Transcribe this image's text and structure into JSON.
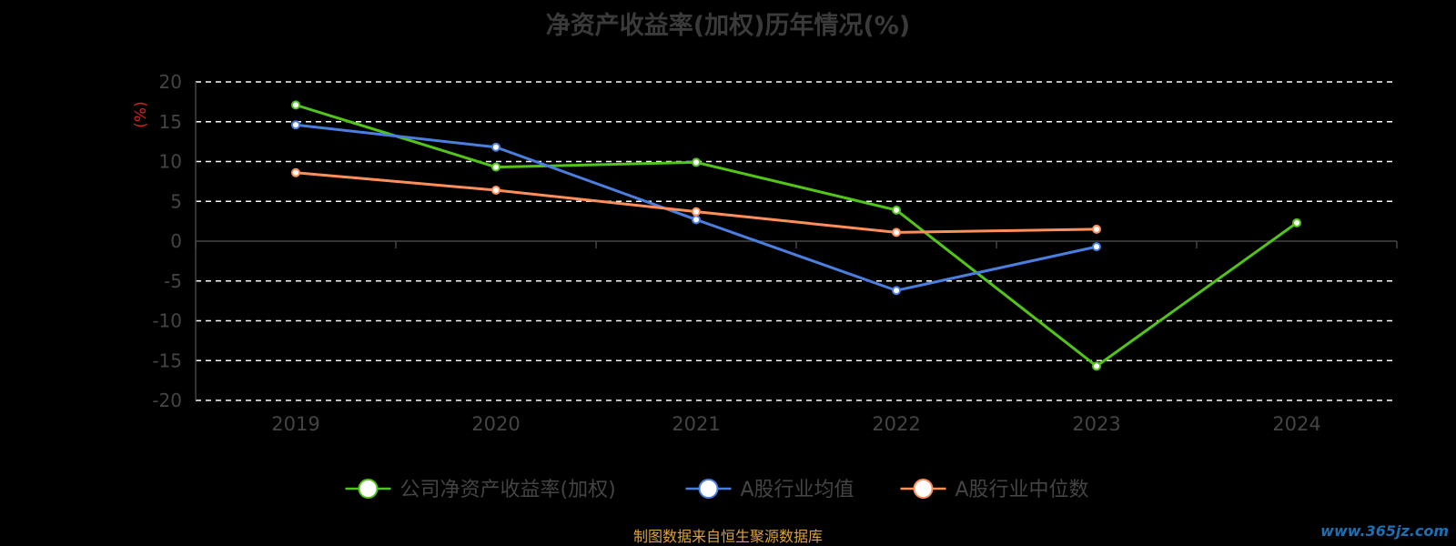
{
  "title": "净资产收益率(加权)历年情况(%)",
  "source_note": "制图数据来自恒生聚源数据库",
  "watermark": "www.365jz.com",
  "chart_data": {
    "type": "line",
    "categories": [
      "2019",
      "2020",
      "2021",
      "2022",
      "2023",
      "2024"
    ],
    "ylabel": "(%)",
    "ylim": [
      -20,
      20
    ],
    "yticks": [
      20,
      15,
      10,
      5,
      0,
      -5,
      -10,
      -15,
      -20
    ],
    "grid": true,
    "legend_position": "bottom",
    "series": [
      {
        "name": "公司净资产收益率(加权)",
        "color": "#52c41a",
        "values": [
          17.1,
          9.3,
          9.9,
          3.9,
          -15.7,
          2.3
        ]
      },
      {
        "name": "A股行业均值",
        "color": "#4a7fe0",
        "values": [
          14.6,
          11.8,
          2.7,
          -6.2,
          -0.7,
          null
        ]
      },
      {
        "name": "A股行业中位数",
        "color": "#ff8f5a",
        "values": [
          8.6,
          6.4,
          3.7,
          1.1,
          1.5,
          null
        ]
      }
    ]
  }
}
